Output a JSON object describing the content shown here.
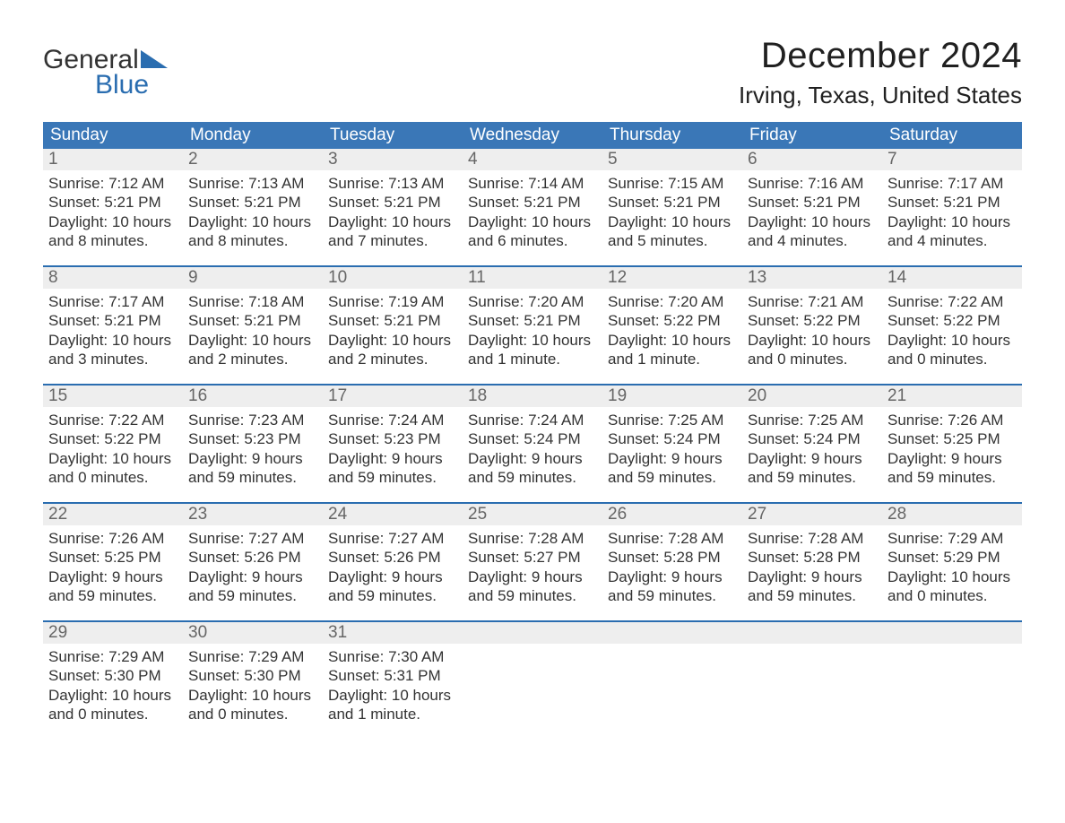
{
  "logo": {
    "line1": "General",
    "line2": "Blue",
    "text_color": "#333333",
    "accent_color": "#2a6db0"
  },
  "header": {
    "month_title": "December 2024",
    "location": "Irving, Texas, United States",
    "title_fontsize": 40,
    "location_fontsize": 26
  },
  "calendar": {
    "header_bg": "#3a77b7",
    "header_text_color": "#ffffff",
    "daynum_bg": "#eeeeee",
    "daynum_color": "#666666",
    "week_separator_color": "#2a6db0",
    "body_text_color": "#333333",
    "day_headers": [
      "Sunday",
      "Monday",
      "Tuesday",
      "Wednesday",
      "Thursday",
      "Friday",
      "Saturday"
    ],
    "weeks": [
      [
        {
          "day": "1",
          "sunrise": "Sunrise: 7:12 AM",
          "sunset": "Sunset: 5:21 PM",
          "daylight1": "Daylight: 10 hours",
          "daylight2": "and 8 minutes."
        },
        {
          "day": "2",
          "sunrise": "Sunrise: 7:13 AM",
          "sunset": "Sunset: 5:21 PM",
          "daylight1": "Daylight: 10 hours",
          "daylight2": "and 8 minutes."
        },
        {
          "day": "3",
          "sunrise": "Sunrise: 7:13 AM",
          "sunset": "Sunset: 5:21 PM",
          "daylight1": "Daylight: 10 hours",
          "daylight2": "and 7 minutes."
        },
        {
          "day": "4",
          "sunrise": "Sunrise: 7:14 AM",
          "sunset": "Sunset: 5:21 PM",
          "daylight1": "Daylight: 10 hours",
          "daylight2": "and 6 minutes."
        },
        {
          "day": "5",
          "sunrise": "Sunrise: 7:15 AM",
          "sunset": "Sunset: 5:21 PM",
          "daylight1": "Daylight: 10 hours",
          "daylight2": "and 5 minutes."
        },
        {
          "day": "6",
          "sunrise": "Sunrise: 7:16 AM",
          "sunset": "Sunset: 5:21 PM",
          "daylight1": "Daylight: 10 hours",
          "daylight2": "and 4 minutes."
        },
        {
          "day": "7",
          "sunrise": "Sunrise: 7:17 AM",
          "sunset": "Sunset: 5:21 PM",
          "daylight1": "Daylight: 10 hours",
          "daylight2": "and 4 minutes."
        }
      ],
      [
        {
          "day": "8",
          "sunrise": "Sunrise: 7:17 AM",
          "sunset": "Sunset: 5:21 PM",
          "daylight1": "Daylight: 10 hours",
          "daylight2": "and 3 minutes."
        },
        {
          "day": "9",
          "sunrise": "Sunrise: 7:18 AM",
          "sunset": "Sunset: 5:21 PM",
          "daylight1": "Daylight: 10 hours",
          "daylight2": "and 2 minutes."
        },
        {
          "day": "10",
          "sunrise": "Sunrise: 7:19 AM",
          "sunset": "Sunset: 5:21 PM",
          "daylight1": "Daylight: 10 hours",
          "daylight2": "and 2 minutes."
        },
        {
          "day": "11",
          "sunrise": "Sunrise: 7:20 AM",
          "sunset": "Sunset: 5:21 PM",
          "daylight1": "Daylight: 10 hours",
          "daylight2": "and 1 minute."
        },
        {
          "day": "12",
          "sunrise": "Sunrise: 7:20 AM",
          "sunset": "Sunset: 5:22 PM",
          "daylight1": "Daylight: 10 hours",
          "daylight2": "and 1 minute."
        },
        {
          "day": "13",
          "sunrise": "Sunrise: 7:21 AM",
          "sunset": "Sunset: 5:22 PM",
          "daylight1": "Daylight: 10 hours",
          "daylight2": "and 0 minutes."
        },
        {
          "day": "14",
          "sunrise": "Sunrise: 7:22 AM",
          "sunset": "Sunset: 5:22 PM",
          "daylight1": "Daylight: 10 hours",
          "daylight2": "and 0 minutes."
        }
      ],
      [
        {
          "day": "15",
          "sunrise": "Sunrise: 7:22 AM",
          "sunset": "Sunset: 5:22 PM",
          "daylight1": "Daylight: 10 hours",
          "daylight2": "and 0 minutes."
        },
        {
          "day": "16",
          "sunrise": "Sunrise: 7:23 AM",
          "sunset": "Sunset: 5:23 PM",
          "daylight1": "Daylight: 9 hours",
          "daylight2": "and 59 minutes."
        },
        {
          "day": "17",
          "sunrise": "Sunrise: 7:24 AM",
          "sunset": "Sunset: 5:23 PM",
          "daylight1": "Daylight: 9 hours",
          "daylight2": "and 59 minutes."
        },
        {
          "day": "18",
          "sunrise": "Sunrise: 7:24 AM",
          "sunset": "Sunset: 5:24 PM",
          "daylight1": "Daylight: 9 hours",
          "daylight2": "and 59 minutes."
        },
        {
          "day": "19",
          "sunrise": "Sunrise: 7:25 AM",
          "sunset": "Sunset: 5:24 PM",
          "daylight1": "Daylight: 9 hours",
          "daylight2": "and 59 minutes."
        },
        {
          "day": "20",
          "sunrise": "Sunrise: 7:25 AM",
          "sunset": "Sunset: 5:24 PM",
          "daylight1": "Daylight: 9 hours",
          "daylight2": "and 59 minutes."
        },
        {
          "day": "21",
          "sunrise": "Sunrise: 7:26 AM",
          "sunset": "Sunset: 5:25 PM",
          "daylight1": "Daylight: 9 hours",
          "daylight2": "and 59 minutes."
        }
      ],
      [
        {
          "day": "22",
          "sunrise": "Sunrise: 7:26 AM",
          "sunset": "Sunset: 5:25 PM",
          "daylight1": "Daylight: 9 hours",
          "daylight2": "and 59 minutes."
        },
        {
          "day": "23",
          "sunrise": "Sunrise: 7:27 AM",
          "sunset": "Sunset: 5:26 PM",
          "daylight1": "Daylight: 9 hours",
          "daylight2": "and 59 minutes."
        },
        {
          "day": "24",
          "sunrise": "Sunrise: 7:27 AM",
          "sunset": "Sunset: 5:26 PM",
          "daylight1": "Daylight: 9 hours",
          "daylight2": "and 59 minutes."
        },
        {
          "day": "25",
          "sunrise": "Sunrise: 7:28 AM",
          "sunset": "Sunset: 5:27 PM",
          "daylight1": "Daylight: 9 hours",
          "daylight2": "and 59 minutes."
        },
        {
          "day": "26",
          "sunrise": "Sunrise: 7:28 AM",
          "sunset": "Sunset: 5:28 PM",
          "daylight1": "Daylight: 9 hours",
          "daylight2": "and 59 minutes."
        },
        {
          "day": "27",
          "sunrise": "Sunrise: 7:28 AM",
          "sunset": "Sunset: 5:28 PM",
          "daylight1": "Daylight: 9 hours",
          "daylight2": "and 59 minutes."
        },
        {
          "day": "28",
          "sunrise": "Sunrise: 7:29 AM",
          "sunset": "Sunset: 5:29 PM",
          "daylight1": "Daylight: 10 hours",
          "daylight2": "and 0 minutes."
        }
      ],
      [
        {
          "day": "29",
          "sunrise": "Sunrise: 7:29 AM",
          "sunset": "Sunset: 5:30 PM",
          "daylight1": "Daylight: 10 hours",
          "daylight2": "and 0 minutes."
        },
        {
          "day": "30",
          "sunrise": "Sunrise: 7:29 AM",
          "sunset": "Sunset: 5:30 PM",
          "daylight1": "Daylight: 10 hours",
          "daylight2": "and 0 minutes."
        },
        {
          "day": "31",
          "sunrise": "Sunrise: 7:30 AM",
          "sunset": "Sunset: 5:31 PM",
          "daylight1": "Daylight: 10 hours",
          "daylight2": "and 1 minute."
        },
        {
          "empty": true
        },
        {
          "empty": true
        },
        {
          "empty": true
        },
        {
          "empty": true
        }
      ]
    ]
  }
}
